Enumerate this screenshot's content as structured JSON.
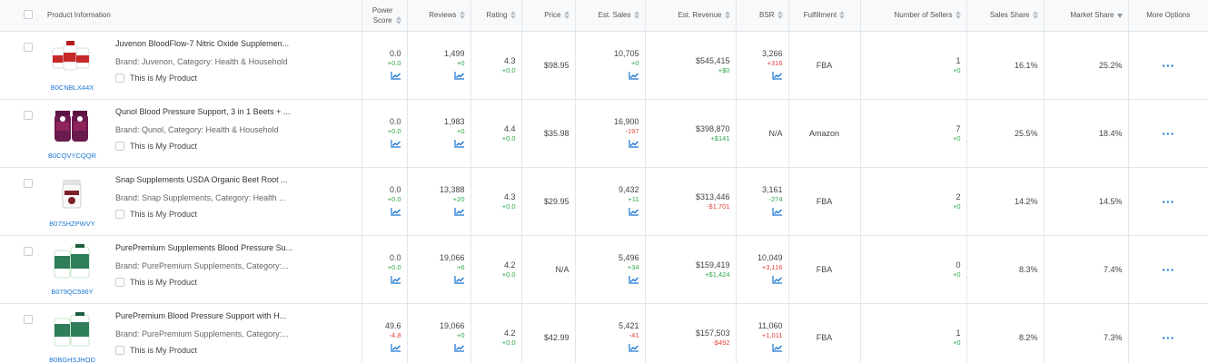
{
  "header": {
    "product_info": "Product Information",
    "power_score_1": "Power",
    "power_score_2": "Score",
    "reviews": "Reviews",
    "rating": "Rating",
    "price": "Price",
    "est_sales": "Est. Sales",
    "est_revenue": "Est. Revenue",
    "bsr": "BSR",
    "fulfillment": "Fulfillment",
    "num_sellers": "Number of Sellers",
    "sales_share": "Sales Share",
    "market_share": "Market Share",
    "more_options": "More Options"
  },
  "rows": [
    {
      "title": "Juvenon BloodFlow-7 Nitric Oxide Supplemen...",
      "brand": "Brand: Juvenon,  Category: Health & Household",
      "mine": "This is My Product",
      "asin": "B0CNBLX44X",
      "image_icon": "red-white-bottles-icon",
      "power": "0.0",
      "power_d": "+0.0",
      "power_dc": "pos",
      "reviews": "1,499",
      "reviews_d": "+0",
      "reviews_dc": "pos",
      "rating": "4.3",
      "rating_d": "+0.0",
      "rating_dc": "pos",
      "price": "$98.95",
      "sales": "10,705",
      "sales_d": "+0",
      "sales_dc": "pos",
      "revenue": "$545,415",
      "revenue_d": "+$0",
      "revenue_dc": "pos",
      "bsr": "3,266",
      "bsr_d": "+316",
      "bsr_dc": "neg",
      "fulfillment": "FBA",
      "sellers": "1",
      "sellers_d": "+0",
      "sellers_dc": "pos",
      "sales_share": "16.1%",
      "market_share": "25.2%"
    },
    {
      "title": "Qunol Blood Pressure Support, 3 in 1 Beets + ...",
      "brand": "Brand: Qunol,  Category: Health & Household",
      "mine": "This is My Product",
      "asin": "B0CQVYCQQR",
      "image_icon": "purple-gummy-jars-icon",
      "power": "0.0",
      "power_d": "+0.0",
      "power_dc": "pos",
      "reviews": "1,983",
      "reviews_d": "+0",
      "reviews_dc": "pos",
      "rating": "4.4",
      "rating_d": "+0.0",
      "rating_dc": "pos",
      "price": "$35.98",
      "sales": "16,900",
      "sales_d": "-197",
      "sales_dc": "neg",
      "revenue": "$398,870",
      "revenue_d": "+$141",
      "revenue_dc": "pos",
      "bsr": "N/A",
      "bsr_d": "",
      "bsr_dc": "pos",
      "fulfillment": "Amazon",
      "sellers": "7",
      "sellers_d": "+0",
      "sellers_dc": "pos",
      "sales_share": "25.5%",
      "market_share": "18.4%"
    },
    {
      "title": "Snap Supplements USDA Organic Beet Root ...",
      "brand": "Brand: Snap Supplements,  Category: Health ...",
      "mine": "This is My Product",
      "asin": "B07SHZPWVY",
      "image_icon": "white-jar-icon",
      "power": "0.0",
      "power_d": "+0.0",
      "power_dc": "pos",
      "reviews": "13,388",
      "reviews_d": "+20",
      "reviews_dc": "pos",
      "rating": "4.3",
      "rating_d": "+0.0",
      "rating_dc": "pos",
      "price": "$29.95",
      "sales": "9,432",
      "sales_d": "+11",
      "sales_dc": "pos",
      "revenue": "$313,446",
      "revenue_d": "-$1,701",
      "revenue_dc": "neg",
      "bsr": "3,161",
      "bsr_d": "-274",
      "bsr_dc": "pos",
      "fulfillment": "FBA",
      "sellers": "2",
      "sellers_d": "+0",
      "sellers_dc": "pos",
      "sales_share": "14.2%",
      "market_share": "14.5%"
    },
    {
      "title": "PurePremium Supplements Blood Pressure Su...",
      "brand": "Brand: PurePremium Supplements,  Category:...",
      "mine": "This is My Product",
      "asin": "B079QC596Y",
      "image_icon": "green-bottles-icon",
      "power": "0.0",
      "power_d": "+0.0",
      "power_dc": "pos",
      "reviews": "19,066",
      "reviews_d": "+6",
      "reviews_dc": "pos",
      "rating": "4.2",
      "rating_d": "+0.0",
      "rating_dc": "pos",
      "price": "N/A",
      "sales": "5,496",
      "sales_d": "+34",
      "sales_dc": "pos",
      "revenue": "$159,419",
      "revenue_d": "+$1,424",
      "revenue_dc": "pos",
      "bsr": "10,049",
      "bsr_d": "+3,116",
      "bsr_dc": "neg",
      "fulfillment": "FBA",
      "sellers": "0",
      "sellers_d": "+0",
      "sellers_dc": "pos",
      "sales_share": "8.3%",
      "market_share": "7.4%"
    },
    {
      "title": "PurePremium Blood Pressure Support with H...",
      "brand": "Brand: PurePremium Supplements,  Category:...",
      "mine": "This is My Product",
      "asin": "B0BGHSJHQD",
      "image_icon": "green-bottles-icon",
      "power": "49.6",
      "power_d": "-4.8",
      "power_dc": "neg",
      "reviews": "19,066",
      "reviews_d": "+0",
      "reviews_dc": "pos",
      "rating": "4.2",
      "rating_d": "+0.0",
      "rating_dc": "pos",
      "price": "$42.99",
      "sales": "5,421",
      "sales_d": "-41",
      "sales_dc": "neg",
      "revenue": "$157,503",
      "revenue_d": "-$492",
      "revenue_dc": "neg",
      "bsr": "11,060",
      "bsr_d": "+1,011",
      "bsr_dc": "neg",
      "fulfillment": "FBA",
      "sellers": "1",
      "sellers_d": "+0",
      "sellers_dc": "pos",
      "sales_share": "8.2%",
      "market_share": "7.3%"
    }
  ],
  "colors": {
    "link_blue": "#1b76d1",
    "positive_green": "#2ea84a",
    "negative_red": "#e2453c",
    "header_bg": "#f8f9fa"
  }
}
